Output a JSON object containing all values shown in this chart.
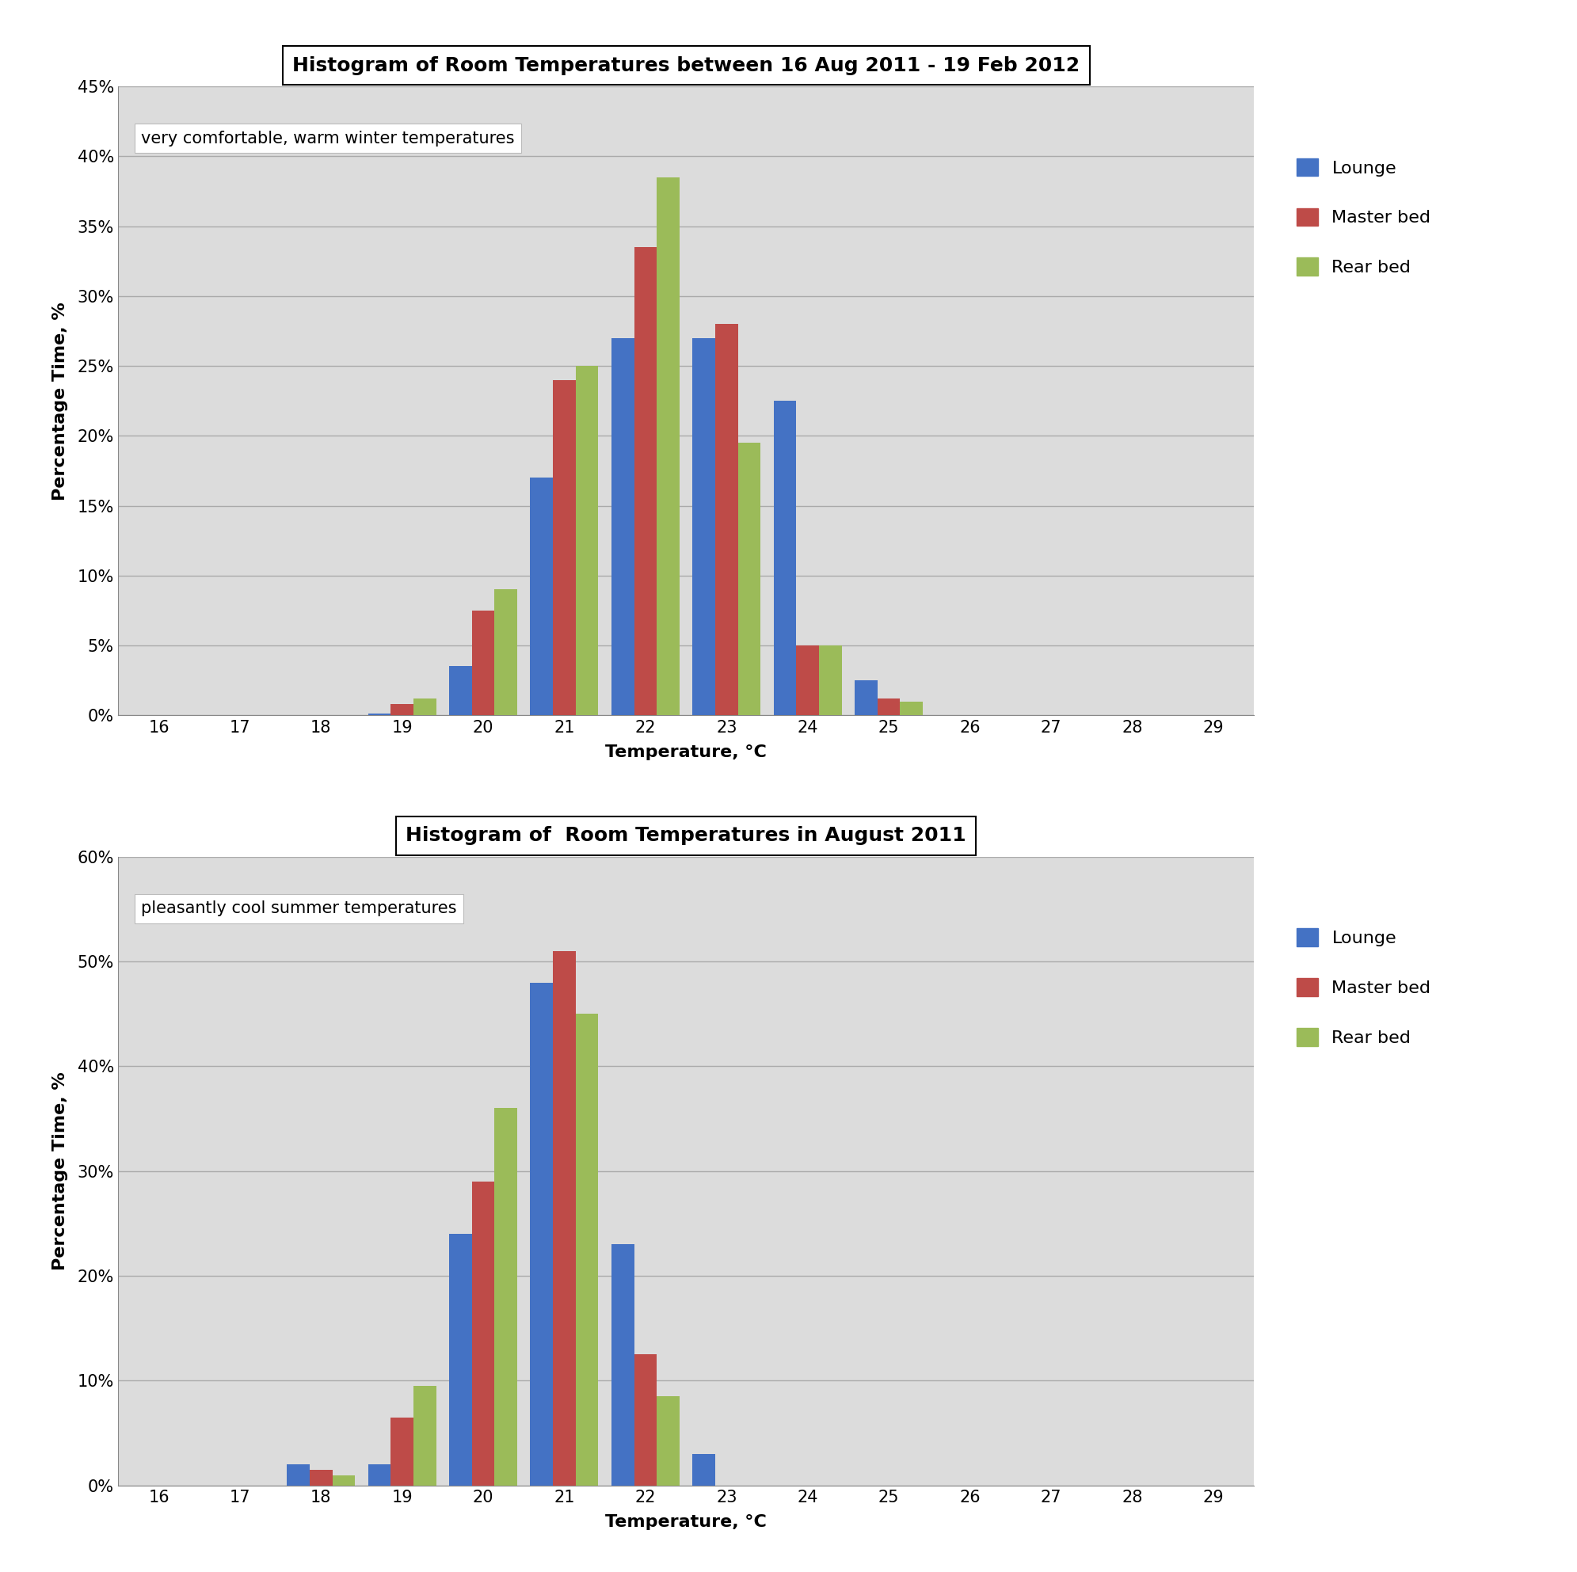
{
  "chart1": {
    "title": "Histogram of Room Temperatures between 16 Aug 2011 - 19 Feb 2012",
    "annotation": "very comfortable, warm winter temperatures",
    "ylabel": "Percentage Time, %",
    "xlabel": "Temperature, °C",
    "xlim": [
      15.5,
      29.5
    ],
    "ylim": [
      0,
      45
    ],
    "yticks": [
      0,
      5,
      10,
      15,
      20,
      25,
      30,
      35,
      40,
      45
    ],
    "ytick_labels": [
      "0%",
      "5%",
      "10%",
      "15%",
      "20%",
      "25%",
      "30%",
      "35%",
      "40%",
      "45%"
    ],
    "xticks": [
      16,
      17,
      18,
      19,
      20,
      21,
      22,
      23,
      24,
      25,
      26,
      27,
      28,
      29
    ],
    "temperatures": [
      16,
      17,
      18,
      19,
      20,
      21,
      22,
      23,
      24,
      25,
      26,
      27,
      28,
      29
    ],
    "lounge": [
      0,
      0,
      0,
      0.1,
      3.5,
      17.0,
      27.0,
      27.0,
      22.5,
      2.5,
      0,
      0,
      0,
      0
    ],
    "master_bed": [
      0,
      0,
      0,
      0.8,
      7.5,
      24.0,
      33.5,
      28.0,
      5.0,
      1.2,
      0,
      0,
      0,
      0
    ],
    "rear_bed": [
      0,
      0,
      0,
      1.2,
      9.0,
      25.0,
      38.5,
      19.5,
      5.0,
      1.0,
      0,
      0,
      0,
      0
    ],
    "lounge_color": "#4472C4",
    "master_color": "#BE4B48",
    "rear_color": "#9BBB59",
    "bg_color": "#DCDCDC",
    "grid_color": "#AAAAAA"
  },
  "chart2": {
    "title": "Histogram of  Room Temperatures in August 2011",
    "annotation": "pleasantly cool summer temperatures",
    "ylabel": "Percentage Time, %",
    "xlabel": "Temperature, °C",
    "xlim": [
      15.5,
      29.5
    ],
    "ylim": [
      0,
      60
    ],
    "yticks": [
      0,
      10,
      20,
      30,
      40,
      50,
      60
    ],
    "ytick_labels": [
      "0%",
      "10%",
      "20%",
      "30%",
      "40%",
      "50%",
      "60%"
    ],
    "xticks": [
      16,
      17,
      18,
      19,
      20,
      21,
      22,
      23,
      24,
      25,
      26,
      27,
      28,
      29
    ],
    "temperatures": [
      16,
      17,
      18,
      19,
      20,
      21,
      22,
      23,
      24,
      25,
      26,
      27,
      28,
      29
    ],
    "lounge": [
      0,
      0,
      2.0,
      2.0,
      24.0,
      48.0,
      23.0,
      3.0,
      0,
      0,
      0,
      0,
      0,
      0
    ],
    "master_bed": [
      0,
      0,
      1.5,
      6.5,
      29.0,
      51.0,
      12.5,
      0,
      0,
      0,
      0,
      0,
      0,
      0
    ],
    "rear_bed": [
      0,
      0,
      1.0,
      9.5,
      36.0,
      45.0,
      8.5,
      0,
      0,
      0,
      0,
      0,
      0,
      0
    ],
    "lounge_color": "#4472C4",
    "master_color": "#BE4B48",
    "rear_color": "#9BBB59",
    "bg_color": "#DCDCDC",
    "grid_color": "#AAAAAA"
  },
  "legend_labels": [
    "Lounge",
    "Master bed",
    "Rear bed"
  ],
  "bar_width": 0.28,
  "title_fontsize": 18,
  "label_fontsize": 16,
  "tick_fontsize": 15,
  "legend_fontsize": 16
}
